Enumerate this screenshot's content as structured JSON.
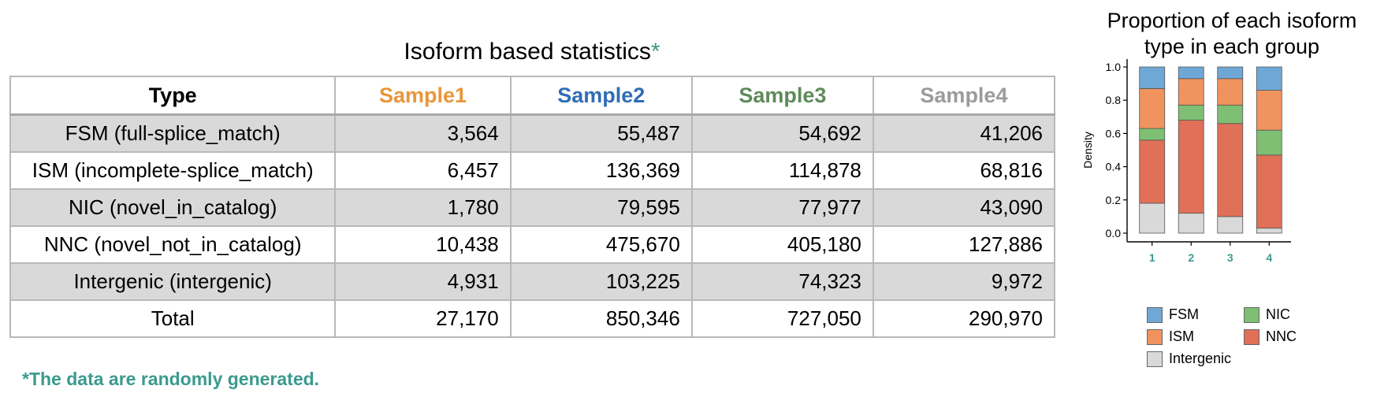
{
  "table": {
    "title": "Isoform based statistics",
    "title_asterisk": "*",
    "headers": [
      "Type",
      "Sample1",
      "Sample2",
      "Sample3",
      "Sample4"
    ],
    "header_colors": [
      "#000000",
      "#e8963a",
      "#2f6db5",
      "#5e8a5a",
      "#9b9b9b"
    ],
    "rows": [
      {
        "type": "FSM (full-splice_match)",
        "values": [
          "3,564",
          "55,487",
          "54,692",
          "41,206"
        ]
      },
      {
        "type": "ISM (incomplete-splice_match)",
        "values": [
          "6,457",
          "136,369",
          "114,878",
          "68,816"
        ]
      },
      {
        "type": "NIC (novel_in_catalog)",
        "values": [
          "1,780",
          "79,595",
          "77,977",
          "43,090"
        ]
      },
      {
        "type": "NNC (novel_not_in_catalog)",
        "values": [
          "10,438",
          "475,670",
          "405,180",
          "127,886"
        ]
      },
      {
        "type": "Intergenic (intergenic)",
        "values": [
          "4,931",
          "103,225",
          "74,323",
          "9,972"
        ]
      },
      {
        "type": "Total",
        "values": [
          "27,170",
          "850,346",
          "727,050",
          "290,970"
        ]
      }
    ],
    "footnote": "*The data are randomly generated."
  },
  "chart_data": {
    "type": "bar",
    "stacked": true,
    "title": "Proportion of each isoform type in each group",
    "ylabel": "Density",
    "xlabel": "",
    "ylim": [
      0,
      1.0
    ],
    "yticks": [
      "0.0",
      "0.2",
      "0.4",
      "0.6",
      "0.8",
      "1.0"
    ],
    "categories": [
      "1",
      "2",
      "3",
      "4"
    ],
    "series": [
      {
        "name": "Intergenic",
        "color": "#d9d9d9",
        "values": [
          0.18,
          0.12,
          0.1,
          0.03
        ]
      },
      {
        "name": "NNC",
        "color": "#e07058",
        "values": [
          0.38,
          0.56,
          0.56,
          0.44
        ]
      },
      {
        "name": "NIC",
        "color": "#7fbf73",
        "values": [
          0.07,
          0.09,
          0.11,
          0.15
        ]
      },
      {
        "name": "ISM",
        "color": "#f0935e",
        "values": [
          0.24,
          0.16,
          0.16,
          0.24
        ]
      },
      {
        "name": "FSM",
        "color": "#6fa8d6",
        "values": [
          0.13,
          0.07,
          0.07,
          0.14
        ]
      }
    ],
    "legend": [
      {
        "name": "FSM",
        "color": "#6fa8d6"
      },
      {
        "name": "NIC",
        "color": "#7fbf73"
      },
      {
        "name": "ISM",
        "color": "#f0935e"
      },
      {
        "name": "NNC",
        "color": "#e07058"
      },
      {
        "name": "Intergenic",
        "color": "#d9d9d9"
      }
    ],
    "legend_placement": "bottom",
    "category_label_color": "#3a9a8e",
    "grid": false
  }
}
